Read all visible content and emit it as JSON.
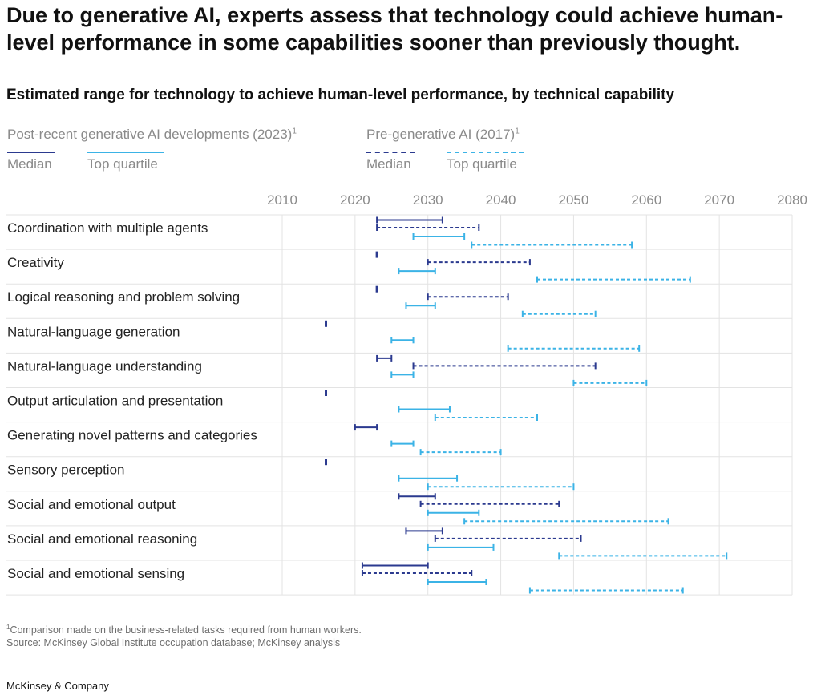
{
  "headline": "Due to generative AI, experts assess that technology could achieve human-level performance in some capabilities sooner than previously thought.",
  "legend": {
    "post": {
      "title": "Post-recent generative AI developments (2023)",
      "footnote_mark": "1",
      "median": "Median",
      "top_quartile": "Top quartile"
    },
    "pre": {
      "title": "Pre-generative AI (2017)",
      "footnote_mark": "1",
      "median": "Median",
      "top_quartile": "Top quartile"
    }
  },
  "colors": {
    "median": "#2b3a8f",
    "top_quartile": "#3bb3e6",
    "grid": "#e3e3e3",
    "axis_text": "#8a8a8a"
  },
  "footnote": {
    "mark": "1",
    "text": "Comparison made on the business-related tasks required from human workers.",
    "source": "Source: McKinsey Global Institute occupation database; McKinsey analysis"
  },
  "brand": "McKinsey & Company",
  "chart_data": {
    "type": "range",
    "title": "Estimated range for technology to achieve human-level performance, by technical capability",
    "xlim": [
      2010,
      2080
    ],
    "x_ticks": [
      2010,
      2020,
      2030,
      2040,
      2050,
      2060,
      2070,
      2080
    ],
    "categories": [
      "Coordination with multiple agents",
      "Creativity",
      "Logical reasoning and problem solving",
      "Natural-language generation",
      "Natural-language understanding",
      "Output articulation and presentation",
      "Generating novel patterns and categories",
      "Sensory perception",
      "Social and emotional output",
      "Social and emotional reasoning",
      "Social and emotional sensing"
    ],
    "series": [
      {
        "name": "Post-recent generative AI developments (2023) – Median",
        "style": "solid",
        "color_key": "median",
        "ranges": [
          [
            2023,
            2032
          ],
          [
            2023,
            2023
          ],
          [
            2023,
            2023
          ],
          [
            2016,
            2016
          ],
          [
            2023,
            2025
          ],
          [
            2016,
            2016
          ],
          [
            2020,
            2023
          ],
          [
            2016,
            2016
          ],
          [
            2026,
            2031
          ],
          [
            2027,
            2032
          ],
          [
            2021,
            2030
          ]
        ]
      },
      {
        "name": "Pre-generative AI (2017) – Median",
        "style": "dashed",
        "color_key": "median",
        "ranges": [
          [
            2023,
            2037
          ],
          [
            2030,
            2044
          ],
          [
            2030,
            2041
          ],
          null,
          [
            2028,
            2053
          ],
          null,
          null,
          null,
          [
            2029,
            2048
          ],
          [
            2031,
            2051
          ],
          [
            2021,
            2036
          ]
        ]
      },
      {
        "name": "Post-recent generative AI developments (2023) – Top quartile",
        "style": "solid",
        "color_key": "top_quartile",
        "ranges": [
          [
            2028,
            2035
          ],
          [
            2026,
            2031
          ],
          [
            2027,
            2031
          ],
          [
            2025,
            2028
          ],
          [
            2025,
            2028
          ],
          [
            2026,
            2033
          ],
          [
            2025,
            2028
          ],
          [
            2026,
            2034
          ],
          [
            2030,
            2037
          ],
          [
            2030,
            2039
          ],
          [
            2030,
            2038
          ]
        ]
      },
      {
        "name": "Pre-generative AI (2017) – Top quartile",
        "style": "dashed",
        "color_key": "top_quartile",
        "ranges": [
          [
            2036,
            2058
          ],
          [
            2045,
            2066
          ],
          [
            2043,
            2053
          ],
          [
            2041,
            2059
          ],
          [
            2050,
            2060
          ],
          [
            2031,
            2045
          ],
          [
            2029,
            2040
          ],
          [
            2030,
            2050
          ],
          [
            2035,
            2063
          ],
          [
            2048,
            2071
          ],
          [
            2044,
            2065
          ]
        ]
      }
    ]
  }
}
